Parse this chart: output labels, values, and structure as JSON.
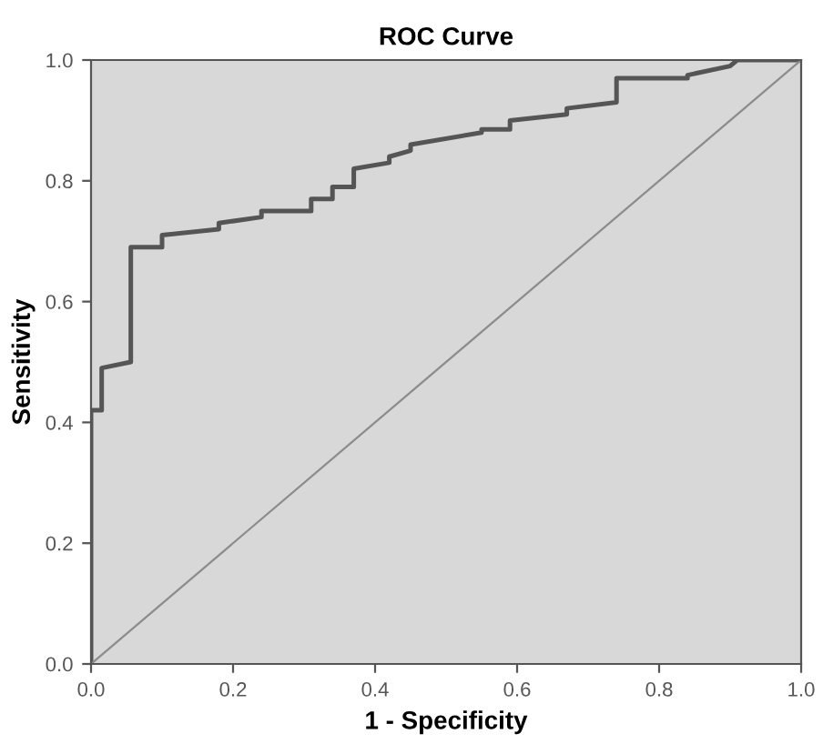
{
  "chart_data": {
    "type": "line",
    "title": "ROC Curve",
    "xlabel": "1 - Specificity",
    "ylabel": "Sensitivity",
    "xlim": [
      0,
      1
    ],
    "ylim": [
      0,
      1
    ],
    "xticks": [
      {
        "value": 0,
        "label": "0.0"
      },
      0.2,
      0.4,
      0.6,
      0.8,
      {
        "value": 1,
        "label": "1.0"
      }
    ],
    "yticks": [
      {
        "value": 0,
        "label": "0.0"
      },
      0.2,
      0.4,
      0.6,
      0.8,
      {
        "value": 1,
        "label": "1.0"
      }
    ],
    "grid": false,
    "marker": "none",
    "series": [
      {
        "color": "#555555",
        "x": [
          0,
          0,
          0.015,
          0.015,
          0.056,
          0.056,
          0.1,
          0.1,
          0.18,
          0.18,
          0.24,
          0.24,
          0.31,
          0.31,
          0.34,
          0.34,
          0.37,
          0.37,
          0.42,
          0.42,
          0.45,
          0.45,
          0.55,
          0.55,
          0.59,
          0.59,
          0.67,
          0.67,
          0.74,
          0.74,
          0.84,
          0.84,
          0.9,
          0.91,
          1
        ],
        "values": [
          0,
          0.42,
          0.42,
          0.49,
          0.5,
          0.69,
          0.69,
          0.71,
          0.72,
          0.73,
          0.74,
          0.75,
          0.75,
          0.77,
          0.77,
          0.79,
          0.79,
          0.82,
          0.83,
          0.84,
          0.85,
          0.86,
          0.88,
          0.885,
          0.885,
          0.9,
          0.91,
          0.92,
          0.93,
          0.97,
          0.97,
          0.975,
          0.99,
          1,
          1
        ]
      },
      {
        "color": "#8c8c8c",
        "x": [
          0,
          1
        ],
        "values": [
          0,
          1
        ]
      }
    ]
  }
}
